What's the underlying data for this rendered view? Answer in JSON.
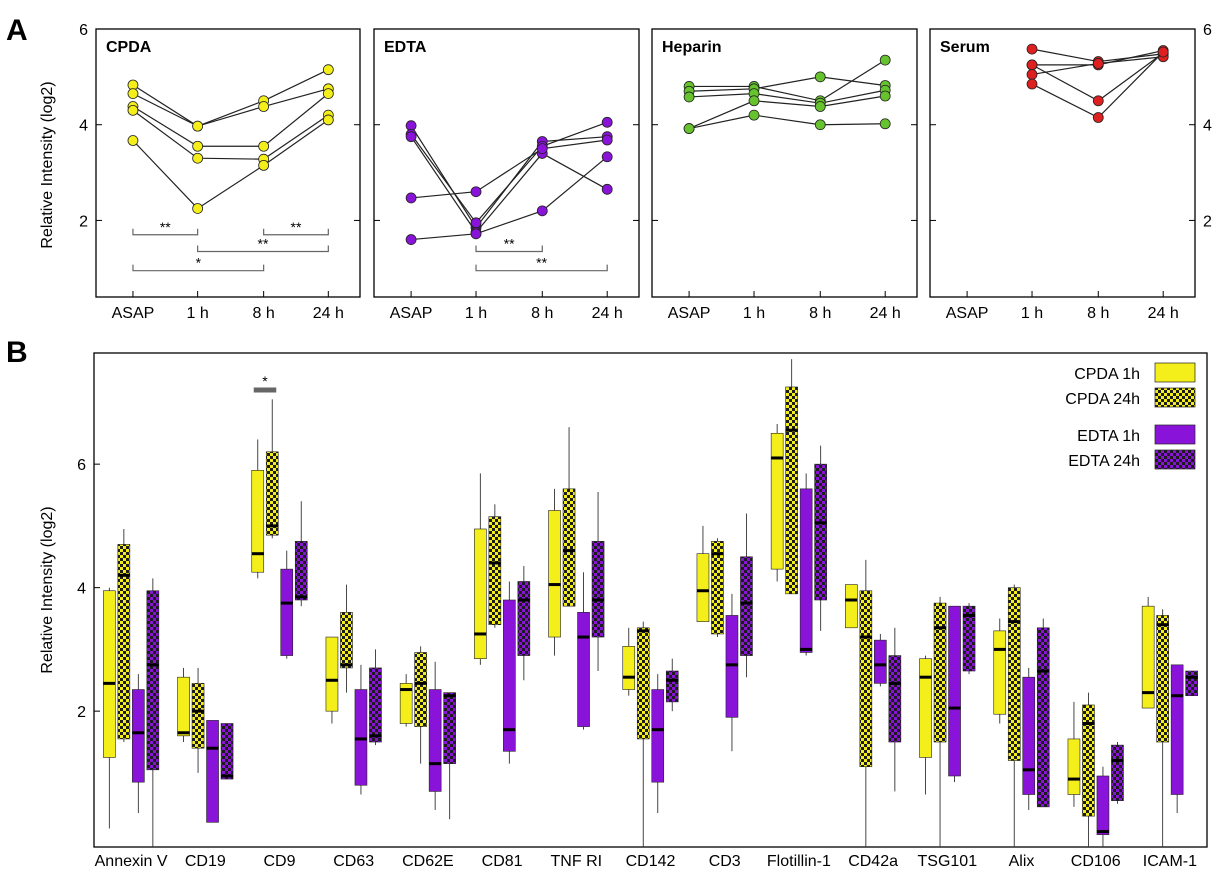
{
  "panel_labels": {
    "a": "A",
    "b": "B"
  },
  "colors": {
    "CPDA": "#f4ef1a",
    "EDTA": "#8a13d9",
    "Heparin": "#66c32e",
    "Serum": "#df2020",
    "bracket": "#666666"
  },
  "chart_data": [
    {
      "type": "line",
      "panel": "A",
      "title": "CPDA",
      "ylabel": "Relative Intensity (log2)",
      "categories": [
        "ASAP",
        "1 h",
        "8 h",
        "24 h"
      ],
      "yticks": [
        2,
        4,
        6
      ],
      "ylim": [
        0.4,
        6
      ],
      "series": [
        {
          "values": [
            4.83,
            3.97,
            4.5,
            5.15
          ]
        },
        {
          "values": [
            4.65,
            3.97,
            4.38,
            4.75
          ]
        },
        {
          "values": [
            4.38,
            3.55,
            3.55,
            4.65
          ]
        },
        {
          "values": [
            4.3,
            3.3,
            3.28,
            4.2
          ]
        },
        {
          "values": [
            3.67,
            2.25,
            3.15,
            4.1
          ]
        }
      ],
      "brackets": [
        {
          "from": "ASAP",
          "to": "1 h",
          "y": 1.7,
          "label": "**"
        },
        {
          "from": "8 h",
          "to": "24 h",
          "y": 1.7,
          "label": "**"
        },
        {
          "from": "1 h",
          "to": "24 h",
          "y": 1.35,
          "label": "**"
        },
        {
          "from": "ASAP",
          "to": "8 h",
          "y": 0.95,
          "label": "*"
        }
      ]
    },
    {
      "type": "line",
      "panel": "A",
      "title": "EDTA",
      "categories": [
        "ASAP",
        "1 h",
        "8 h",
        "24 h"
      ],
      "ylim": [
        0.4,
        6
      ],
      "series": [
        {
          "values": [
            3.98,
            1.85,
            3.65,
            3.75
          ]
        },
        {
          "values": [
            3.8,
            1.95,
            3.55,
            4.05
          ]
        },
        {
          "values": [
            3.75,
            1.75,
            3.4,
            2.65
          ]
        },
        {
          "values": [
            2.47,
            2.6,
            3.5,
            3.68
          ]
        },
        {
          "values": [
            1.6,
            1.72,
            2.2,
            3.33
          ]
        }
      ],
      "brackets": [
        {
          "from": "1 h",
          "to": "8 h",
          "y": 1.35,
          "label": "**"
        },
        {
          "from": "1 h",
          "to": "24 h",
          "y": 0.95,
          "label": "**"
        }
      ]
    },
    {
      "type": "line",
      "panel": "A",
      "title": "Heparin",
      "categories": [
        "ASAP",
        "1 h",
        "8 h",
        "24 h"
      ],
      "ylim": [
        0.4,
        6
      ],
      "series": [
        {
          "values": [
            4.8,
            4.8,
            4.5,
            5.35
          ]
        },
        {
          "values": [
            4.7,
            4.75,
            5.0,
            4.82
          ]
        },
        {
          "values": [
            4.58,
            4.65,
            4.45,
            4.72
          ]
        },
        {
          "values": [
            3.92,
            4.5,
            4.38,
            4.6
          ]
        },
        {
          "values": [
            3.92,
            4.2,
            4.0,
            4.02
          ]
        }
      ],
      "brackets": []
    },
    {
      "type": "line",
      "panel": "A",
      "title": "Serum",
      "categories": [
        "ASAP",
        "1 h",
        "8 h",
        "24 h"
      ],
      "yticks": [
        2,
        4,
        6
      ],
      "ylim": [
        0.4,
        6
      ],
      "series": [
        {
          "values": [
            null,
            5.58,
            5.32,
            5.48
          ]
        },
        {
          "values": [
            null,
            5.25,
            5.25,
            5.55
          ]
        },
        {
          "values": [
            null,
            5.25,
            4.5,
            5.5
          ]
        },
        {
          "values": [
            null,
            5.05,
            5.28,
            5.42
          ]
        },
        {
          "values": [
            null,
            4.85,
            4.15,
            5.52
          ]
        }
      ],
      "brackets": []
    },
    {
      "type": "box",
      "panel": "B",
      "ylabel": "Relative Intensity (log2)",
      "yticks": [
        2,
        4,
        6
      ],
      "ylim": [
        -0.2,
        7.8
      ],
      "categories": [
        "Annexin V",
        "CD19",
        "CD9",
        "CD63",
        "CD62E",
        "CD81",
        "TNF RI",
        "CD142",
        "CD3",
        "Flotillin-1",
        "CD42a",
        "TSG101",
        "Alix",
        "CD106",
        "ICAM-1"
      ],
      "legend": [
        "CPDA 1h",
        "CPDA 24h",
        "EDTA 1h",
        "EDTA 24h"
      ],
      "series": [
        {
          "name": "CPDA 1h",
          "boxes": [
            [
              0.1,
              1.25,
              2.45,
              3.95,
              4.0
            ],
            [
              1.5,
              1.6,
              1.65,
              2.55,
              2.7
            ],
            [
              4.15,
              4.25,
              4.55,
              5.9,
              6.4
            ],
            [
              1.8,
              2.0,
              2.5,
              3.2,
              3.2
            ],
            [
              1.75,
              1.8,
              2.35,
              2.45,
              2.6
            ],
            [
              2.75,
              2.85,
              3.25,
              4.95,
              5.85
            ],
            [
              2.9,
              3.2,
              4.05,
              5.25,
              5.6
            ],
            [
              2.25,
              2.35,
              2.55,
              3.05,
              3.35
            ],
            [
              3.45,
              3.45,
              3.95,
              4.55,
              5.0
            ],
            [
              4.1,
              4.3,
              6.1,
              6.5,
              6.65
            ],
            [
              3.35,
              3.35,
              3.8,
              4.05,
              4.05
            ],
            [
              0.65,
              1.25,
              2.55,
              2.85,
              2.9
            ],
            [
              1.8,
              1.95,
              3.0,
              3.3,
              3.5
            ],
            [
              0.45,
              0.65,
              0.9,
              1.55,
              2.15
            ],
            [
              2.05,
              2.05,
              2.3,
              3.7,
              3.85
            ]
          ]
        },
        {
          "name": "CPDA 24h",
          "boxes": [
            [
              1.5,
              1.55,
              4.2,
              4.7,
              4.95
            ],
            [
              1.0,
              1.4,
              2.0,
              2.45,
              2.7
            ],
            [
              4.8,
              4.85,
              5.0,
              6.2,
              7.05
            ],
            [
              2.3,
              2.7,
              2.75,
              3.6,
              4.05
            ],
            [
              1.15,
              1.75,
              2.45,
              2.95,
              3.05
            ],
            [
              3.35,
              3.4,
              4.4,
              5.15,
              5.35
            ],
            [
              3.7,
              3.7,
              4.6,
              5.6,
              6.6
            ],
            [
              -0.2,
              1.55,
              3.3,
              3.35,
              3.45
            ],
            [
              3.2,
              3.25,
              4.55,
              4.75,
              4.8
            ],
            [
              3.9,
              3.9,
              6.55,
              7.25,
              7.7
            ],
            [
              -0.2,
              1.1,
              3.2,
              3.95,
              4.45
            ],
            [
              -0.2,
              1.5,
              3.35,
              3.75,
              3.85
            ],
            [
              -0.2,
              1.2,
              3.45,
              4.0,
              4.05
            ],
            [
              -0.2,
              0.3,
              1.8,
              2.1,
              2.3
            ],
            [
              -0.2,
              1.5,
              3.4,
              3.55,
              3.65
            ]
          ]
        },
        {
          "name": "EDTA 1h",
          "boxes": [
            [
              0.35,
              0.85,
              1.65,
              2.35,
              2.6
            ],
            [
              0.2,
              0.2,
              1.4,
              1.85,
              1.85
            ],
            [
              2.85,
              2.9,
              3.75,
              4.3,
              4.6
            ],
            [
              0.65,
              0.8,
              1.55,
              2.35,
              2.75
            ],
            [
              0.4,
              0.7,
              1.15,
              2.35,
              2.8
            ],
            [
              1.15,
              1.35,
              1.7,
              3.8,
              4.1
            ],
            [
              1.7,
              1.75,
              3.2,
              3.6,
              4.25
            ],
            [
              0.35,
              0.85,
              1.7,
              2.35,
              2.6
            ],
            [
              1.35,
              1.9,
              2.75,
              3.55,
              3.9
            ],
            [
              2.9,
              2.95,
              3.0,
              5.6,
              5.85
            ],
            [
              2.4,
              2.45,
              2.75,
              3.15,
              3.25
            ],
            [
              0.85,
              0.95,
              2.05,
              3.7,
              3.7
            ],
            [
              0.4,
              0.65,
              1.05,
              2.55,
              2.7
            ],
            [
              -0.2,
              0.0,
              0.05,
              0.95,
              1.1
            ],
            [
              0.35,
              0.65,
              2.25,
              2.75,
              2.75
            ]
          ]
        },
        {
          "name": "EDTA 24h",
          "boxes": [
            [
              -0.2,
              1.05,
              2.75,
              3.95,
              4.15
            ],
            [
              0.9,
              0.9,
              0.95,
              1.8,
              1.8
            ],
            [
              3.7,
              3.8,
              3.85,
              4.75,
              5.4
            ],
            [
              1.45,
              1.5,
              1.6,
              2.7,
              3.0
            ],
            [
              0.25,
              1.15,
              2.25,
              2.3,
              2.3
            ],
            [
              2.5,
              2.9,
              3.8,
              4.1,
              4.35
            ],
            [
              2.65,
              3.2,
              3.8,
              4.75,
              5.55
            ],
            [
              2.0,
              2.15,
              2.5,
              2.65,
              2.85
            ],
            [
              2.55,
              2.9,
              3.75,
              4.5,
              5.2
            ],
            [
              3.3,
              3.8,
              5.05,
              6.0,
              6.3
            ],
            [
              0.7,
              1.5,
              2.45,
              2.9,
              3.35
            ],
            [
              2.6,
              2.65,
              3.55,
              3.7,
              3.75
            ],
            [
              0.45,
              0.45,
              2.65,
              3.35,
              3.5
            ],
            [
              0.5,
              0.55,
              1.2,
              1.45,
              1.5
            ],
            [
              2.25,
              2.25,
              2.55,
              2.65,
              2.65
            ]
          ]
        }
      ],
      "annotations": [
        {
          "category": "CD9",
          "label": "*",
          "y": 7.2
        }
      ]
    }
  ]
}
